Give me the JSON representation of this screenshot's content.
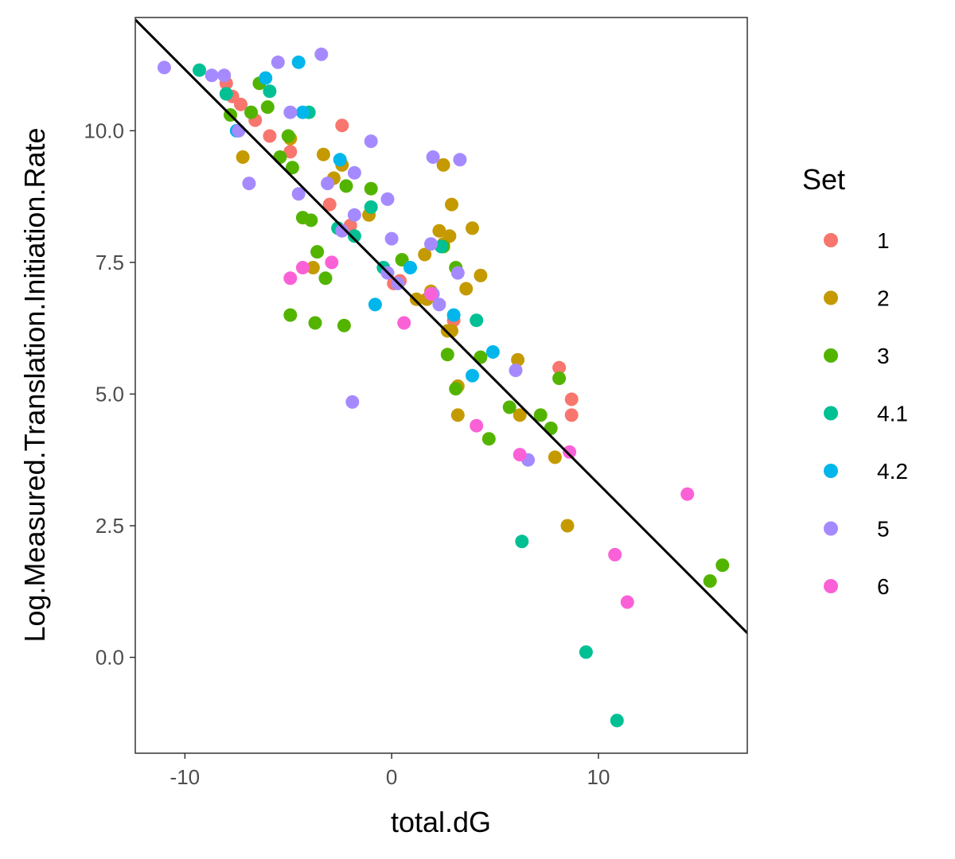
{
  "chart_data": {
    "type": "scatter",
    "title": "",
    "xlabel": "total.dG",
    "ylabel": "Log.Measured.Translation.Initiation.Rate",
    "xlim": [
      -12.4,
      17.2
    ],
    "ylim": [
      -1.82,
      12.15
    ],
    "x_ticks": [
      -10,
      0,
      10
    ],
    "x_tick_labels": [
      "-10",
      "0",
      "10"
    ],
    "y_ticks": [
      0,
      2.5,
      5,
      7.5,
      10
    ],
    "y_tick_labels": [
      "0.0",
      "2.5",
      "5.0",
      "7.5",
      "10.0"
    ],
    "grid": false,
    "legend": {
      "title": "Set",
      "position": "right"
    },
    "regression_line": {
      "intercept": 7.23,
      "slope": -0.3935
    },
    "series": [
      {
        "name": "1",
        "color": "#F8766D",
        "points": [
          [
            -8.0,
            10.9
          ],
          [
            -7.7,
            10.65
          ],
          [
            -7.3,
            10.5
          ],
          [
            -6.6,
            10.2
          ],
          [
            -5.9,
            9.9
          ],
          [
            -4.9,
            9.6
          ],
          [
            -2.4,
            10.1
          ],
          [
            -3.0,
            8.6
          ],
          [
            0.1,
            7.1
          ],
          [
            8.1,
            5.5
          ],
          [
            8.7,
            4.9
          ],
          [
            8.7,
            4.6
          ],
          [
            -2.0,
            8.2
          ],
          [
            0.4,
            7.15
          ],
          [
            3.0,
            6.4
          ]
        ]
      },
      {
        "name": "2",
        "color": "#C49A00",
        "points": [
          [
            -7.2,
            9.5
          ],
          [
            -4.9,
            9.85
          ],
          [
            -3.3,
            9.55
          ],
          [
            -2.8,
            9.1
          ],
          [
            -2.4,
            9.35
          ],
          [
            -1.1,
            8.4
          ],
          [
            -3.8,
            7.4
          ],
          [
            1.6,
            7.65
          ],
          [
            2.3,
            8.1
          ],
          [
            2.5,
            9.35
          ],
          [
            2.8,
            8.0
          ],
          [
            2.9,
            8.6
          ],
          [
            3.9,
            8.15
          ],
          [
            4.3,
            7.25
          ],
          [
            3.6,
            7.0
          ],
          [
            1.2,
            6.8
          ],
          [
            1.7,
            6.8
          ],
          [
            2.7,
            6.2
          ],
          [
            2.9,
            6.2
          ],
          [
            3.2,
            5.15
          ],
          [
            3.2,
            4.6
          ],
          [
            6.1,
            5.65
          ],
          [
            6.2,
            4.6
          ],
          [
            7.9,
            3.8
          ],
          [
            8.5,
            2.5
          ],
          [
            2.5,
            7.85
          ],
          [
            1.9,
            6.95
          ]
        ]
      },
      {
        "name": "3",
        "color": "#53B400",
        "points": [
          [
            -6.4,
            10.9
          ],
          [
            -6.0,
            10.45
          ],
          [
            -7.8,
            10.3
          ],
          [
            -6.8,
            10.35
          ],
          [
            -5.4,
            9.5
          ],
          [
            -5.0,
            9.9
          ],
          [
            -4.8,
            9.3
          ],
          [
            -2.2,
            8.95
          ],
          [
            -1.0,
            8.9
          ],
          [
            -4.3,
            8.35
          ],
          [
            -3.9,
            8.3
          ],
          [
            -3.6,
            7.7
          ],
          [
            -3.2,
            7.2
          ],
          [
            -4.9,
            6.5
          ],
          [
            -3.7,
            6.35
          ],
          [
            -2.3,
            6.3
          ],
          [
            0.5,
            7.55
          ],
          [
            2.5,
            7.8
          ],
          [
            3.1,
            7.4
          ],
          [
            3.1,
            5.1
          ],
          [
            2.7,
            5.75
          ],
          [
            4.3,
            5.7
          ],
          [
            4.7,
            4.15
          ],
          [
            5.7,
            4.75
          ],
          [
            7.2,
            4.6
          ],
          [
            7.7,
            4.35
          ],
          [
            8.1,
            5.3
          ],
          [
            15.4,
            1.45
          ],
          [
            16.0,
            1.75
          ]
        ]
      },
      {
        "name": "4.1",
        "color": "#00C094",
        "points": [
          [
            -9.3,
            11.15
          ],
          [
            -8.0,
            10.7
          ],
          [
            -5.9,
            10.75
          ],
          [
            -4.0,
            10.35
          ],
          [
            -2.6,
            8.15
          ],
          [
            -1.8,
            8.0
          ],
          [
            -1.0,
            8.55
          ],
          [
            -0.4,
            7.4
          ],
          [
            2.4,
            7.8
          ],
          [
            4.1,
            6.4
          ],
          [
            6.3,
            2.2
          ],
          [
            9.4,
            0.1
          ],
          [
            10.9,
            -1.2
          ]
        ]
      },
      {
        "name": "4.2",
        "color": "#00B6EB",
        "points": [
          [
            -6.1,
            11.0
          ],
          [
            -4.5,
            11.3
          ],
          [
            -4.3,
            10.35
          ],
          [
            -7.5,
            10.0
          ],
          [
            -2.5,
            9.45
          ],
          [
            -0.8,
            6.7
          ],
          [
            0.9,
            7.4
          ],
          [
            3.0,
            6.5
          ],
          [
            4.9,
            5.8
          ],
          [
            3.9,
            5.35
          ]
        ]
      },
      {
        "name": "5",
        "color": "#A58AFF",
        "points": [
          [
            -11.0,
            11.2
          ],
          [
            -8.7,
            11.05
          ],
          [
            -8.1,
            11.05
          ],
          [
            -5.5,
            11.3
          ],
          [
            -3.4,
            11.45
          ],
          [
            -4.9,
            10.35
          ],
          [
            -7.4,
            10.0
          ],
          [
            -6.9,
            9.0
          ],
          [
            -4.5,
            8.8
          ],
          [
            -3.1,
            9.0
          ],
          [
            -1.8,
            9.2
          ],
          [
            -1.0,
            9.8
          ],
          [
            -0.2,
            8.7
          ],
          [
            2.0,
            9.5
          ],
          [
            3.3,
            9.45
          ],
          [
            -2.4,
            8.1
          ],
          [
            -1.8,
            8.4
          ],
          [
            0.0,
            7.95
          ],
          [
            1.9,
            7.85
          ],
          [
            3.2,
            7.3
          ],
          [
            -0.2,
            7.3
          ],
          [
            0.3,
            7.1
          ],
          [
            2.0,
            6.9
          ],
          [
            2.3,
            6.7
          ],
          [
            6.0,
            5.45
          ],
          [
            6.6,
            3.75
          ],
          [
            -1.9,
            4.85
          ]
        ]
      },
      {
        "name": "6",
        "color": "#FB61D7",
        "points": [
          [
            -4.3,
            7.4
          ],
          [
            -4.9,
            7.2
          ],
          [
            -2.9,
            7.5
          ],
          [
            0.6,
            6.35
          ],
          [
            1.9,
            6.9
          ],
          [
            4.1,
            4.4
          ],
          [
            6.2,
            3.85
          ],
          [
            8.6,
            3.9
          ],
          [
            10.8,
            1.95
          ],
          [
            11.4,
            1.05
          ],
          [
            14.3,
            3.1
          ]
        ]
      }
    ]
  }
}
